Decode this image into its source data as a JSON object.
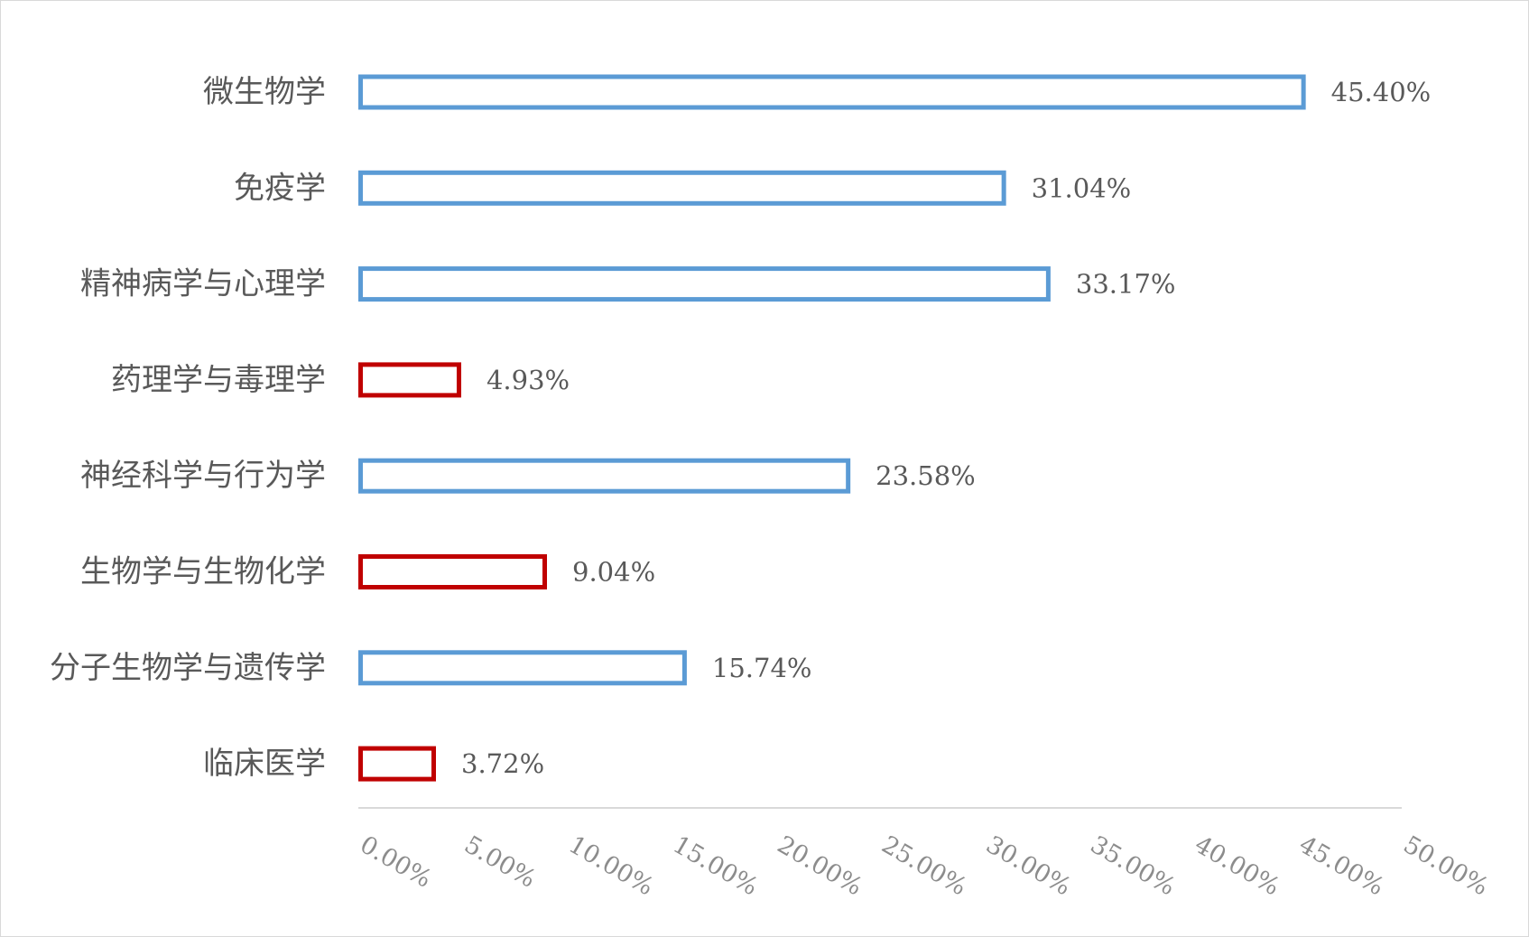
{
  "chart_data": {
    "type": "bar",
    "orientation": "horizontal",
    "title": "",
    "xlabel": "",
    "ylabel": "",
    "xlim": [
      0,
      50
    ],
    "grid": false,
    "legend": "none",
    "colors": {
      "blue": "#5b9bd5",
      "red": "#c00000",
      "axis": "#d9d9d9",
      "text": "#595959"
    },
    "categories": [
      "微生物学",
      "免疫学",
      "精神病学与心理学",
      "药理学与毒理学",
      "神经科学与行为学",
      "生物学与生物化学",
      "分子生物学与遗传学",
      "临床医学"
    ],
    "values": [
      45.4,
      31.04,
      33.17,
      4.93,
      23.58,
      9.04,
      15.74,
      3.72
    ],
    "value_labels": [
      "45.40%",
      "31.04%",
      "33.17%",
      "4.93%",
      "23.58%",
      "9.04%",
      "15.74%",
      "3.72%"
    ],
    "bar_colors": [
      "blue",
      "blue",
      "blue",
      "red",
      "blue",
      "red",
      "blue",
      "red"
    ],
    "x_ticks": [
      0,
      5,
      10,
      15,
      20,
      25,
      30,
      35,
      40,
      45,
      50
    ],
    "x_tick_labels": [
      "0.00%",
      "5.00%",
      "10.00%",
      "15.00%",
      "20.00%",
      "25.00%",
      "30.00%",
      "35.00%",
      "40.00%",
      "45.00%",
      "50.00%"
    ]
  }
}
